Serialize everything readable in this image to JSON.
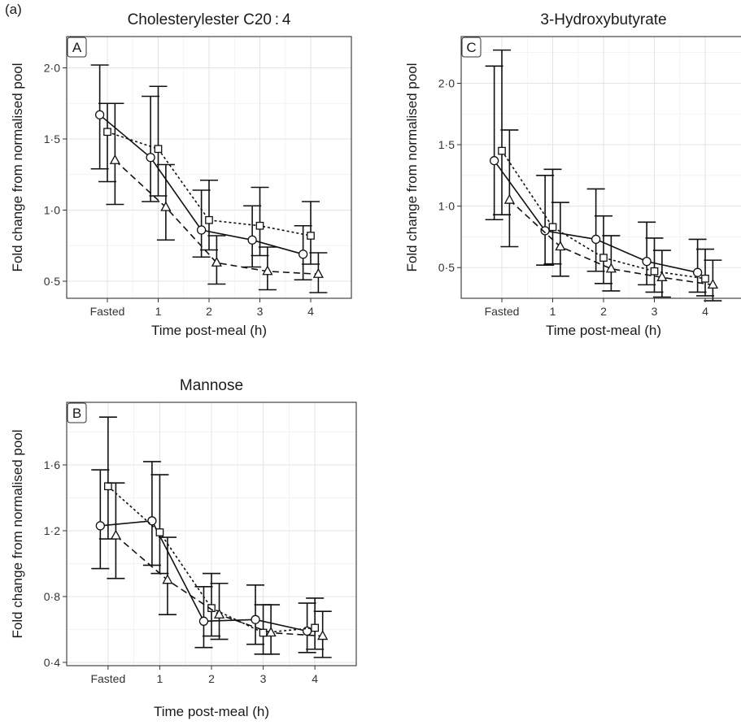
{
  "figure_label": "(a)",
  "chart_data": [
    {
      "id": "A",
      "type": "line",
      "tag": "A",
      "title": "Cholesterylester C20 : 4",
      "xlabel": "Time post-meal (h)",
      "ylabel": "Fold change from normalised pool",
      "categories": [
        "Fasted",
        "1",
        "2",
        "3",
        "4"
      ],
      "ylim": [
        0.38,
        2.22
      ],
      "yticks": [
        0.5,
        1.0,
        1.5,
        2.0
      ],
      "ytick_labels": [
        "0·5",
        "1·0",
        "1·5",
        "2·0"
      ],
      "grid": true,
      "series": [
        {
          "marker": "circle",
          "linestyle": "solid",
          "offset": -0.15,
          "values": [
            1.67,
            1.37,
            0.86,
            0.79,
            0.69
          ],
          "lower": [
            1.29,
            1.06,
            0.67,
            0.6,
            0.51
          ],
          "upper": [
            2.02,
            1.8,
            1.14,
            1.03,
            0.89
          ]
        },
        {
          "marker": "square",
          "linestyle": "dotted",
          "offset": 0.0,
          "values": [
            1.55,
            1.43,
            0.93,
            0.89,
            0.82
          ],
          "lower": [
            1.2,
            1.1,
            0.72,
            0.68,
            0.62
          ],
          "upper": [
            1.75,
            1.87,
            1.21,
            1.16,
            1.06
          ]
        },
        {
          "marker": "triangle",
          "linestyle": "dashed",
          "offset": 0.15,
          "values": [
            1.35,
            1.02,
            0.63,
            0.57,
            0.55
          ],
          "lower": [
            1.04,
            0.79,
            0.48,
            0.44,
            0.42
          ],
          "upper": [
            1.75,
            1.32,
            0.82,
            0.74,
            0.7
          ]
        }
      ]
    },
    {
      "id": "C",
      "type": "line",
      "tag": "C",
      "title": "3-Hydroxybutyrate",
      "xlabel": "Time post-meal (h)",
      "ylabel": "Fold change from normalised pool",
      "categories": [
        "Fasted",
        "1",
        "2",
        "3",
        "4"
      ],
      "ylim": [
        0.25,
        2.38
      ],
      "yticks": [
        0.5,
        1.0,
        1.5,
        2.0
      ],
      "ytick_labels": [
        "0·5",
        "1·0",
        "1·5",
        "2·0"
      ],
      "grid": true,
      "series": [
        {
          "marker": "circle",
          "linestyle": "solid",
          "offset": -0.15,
          "values": [
            1.37,
            0.8,
            0.73,
            0.55,
            0.46
          ],
          "lower": [
            0.89,
            0.52,
            0.47,
            0.36,
            0.3
          ],
          "upper": [
            2.14,
            1.25,
            1.14,
            0.87,
            0.73
          ]
        },
        {
          "marker": "square",
          "linestyle": "dotted",
          "offset": 0.0,
          "values": [
            1.45,
            0.83,
            0.58,
            0.47,
            0.41
          ],
          "lower": [
            0.93,
            0.53,
            0.37,
            0.3,
            0.27
          ],
          "upper": [
            2.27,
            1.3,
            0.92,
            0.74,
            0.65
          ]
        },
        {
          "marker": "triangle",
          "linestyle": "dashed",
          "offset": 0.15,
          "values": [
            1.05,
            0.67,
            0.49,
            0.42,
            0.36
          ],
          "lower": [
            0.67,
            0.43,
            0.31,
            0.26,
            0.23
          ],
          "upper": [
            1.62,
            1.03,
            0.76,
            0.64,
            0.56
          ]
        }
      ]
    },
    {
      "id": "B",
      "type": "line",
      "tag": "B",
      "title": "Mannose",
      "xlabel": "Time post-meal (h)",
      "ylabel": "Fold change from normalised pool",
      "categories": [
        "Fasted",
        "1",
        "2",
        "3",
        "4"
      ],
      "ylim": [
        0.38,
        1.98
      ],
      "yticks": [
        0.4,
        0.8,
        1.2,
        1.6
      ],
      "ytick_labels": [
        "0·4",
        "0·8",
        "1·2",
        "1·6"
      ],
      "grid": true,
      "series": [
        {
          "marker": "circle",
          "linestyle": "solid",
          "offset": -0.15,
          "values": [
            1.23,
            1.26,
            0.65,
            0.66,
            0.59
          ],
          "lower": [
            0.97,
            0.99,
            0.49,
            0.51,
            0.46
          ],
          "upper": [
            1.57,
            1.62,
            0.86,
            0.87,
            0.76
          ]
        },
        {
          "marker": "square",
          "linestyle": "dotted",
          "offset": 0.0,
          "values": [
            1.47,
            1.19,
            0.73,
            0.58,
            0.61
          ],
          "lower": [
            1.15,
            0.94,
            0.56,
            0.45,
            0.48
          ],
          "upper": [
            1.89,
            1.54,
            0.94,
            0.75,
            0.79
          ]
        },
        {
          "marker": "triangle",
          "linestyle": "dashed",
          "offset": 0.15,
          "values": [
            1.17,
            0.9,
            0.69,
            0.58,
            0.56
          ],
          "lower": [
            0.91,
            0.69,
            0.54,
            0.45,
            0.43
          ],
          "upper": [
            1.49,
            1.16,
            0.88,
            0.75,
            0.71
          ]
        }
      ]
    }
  ]
}
